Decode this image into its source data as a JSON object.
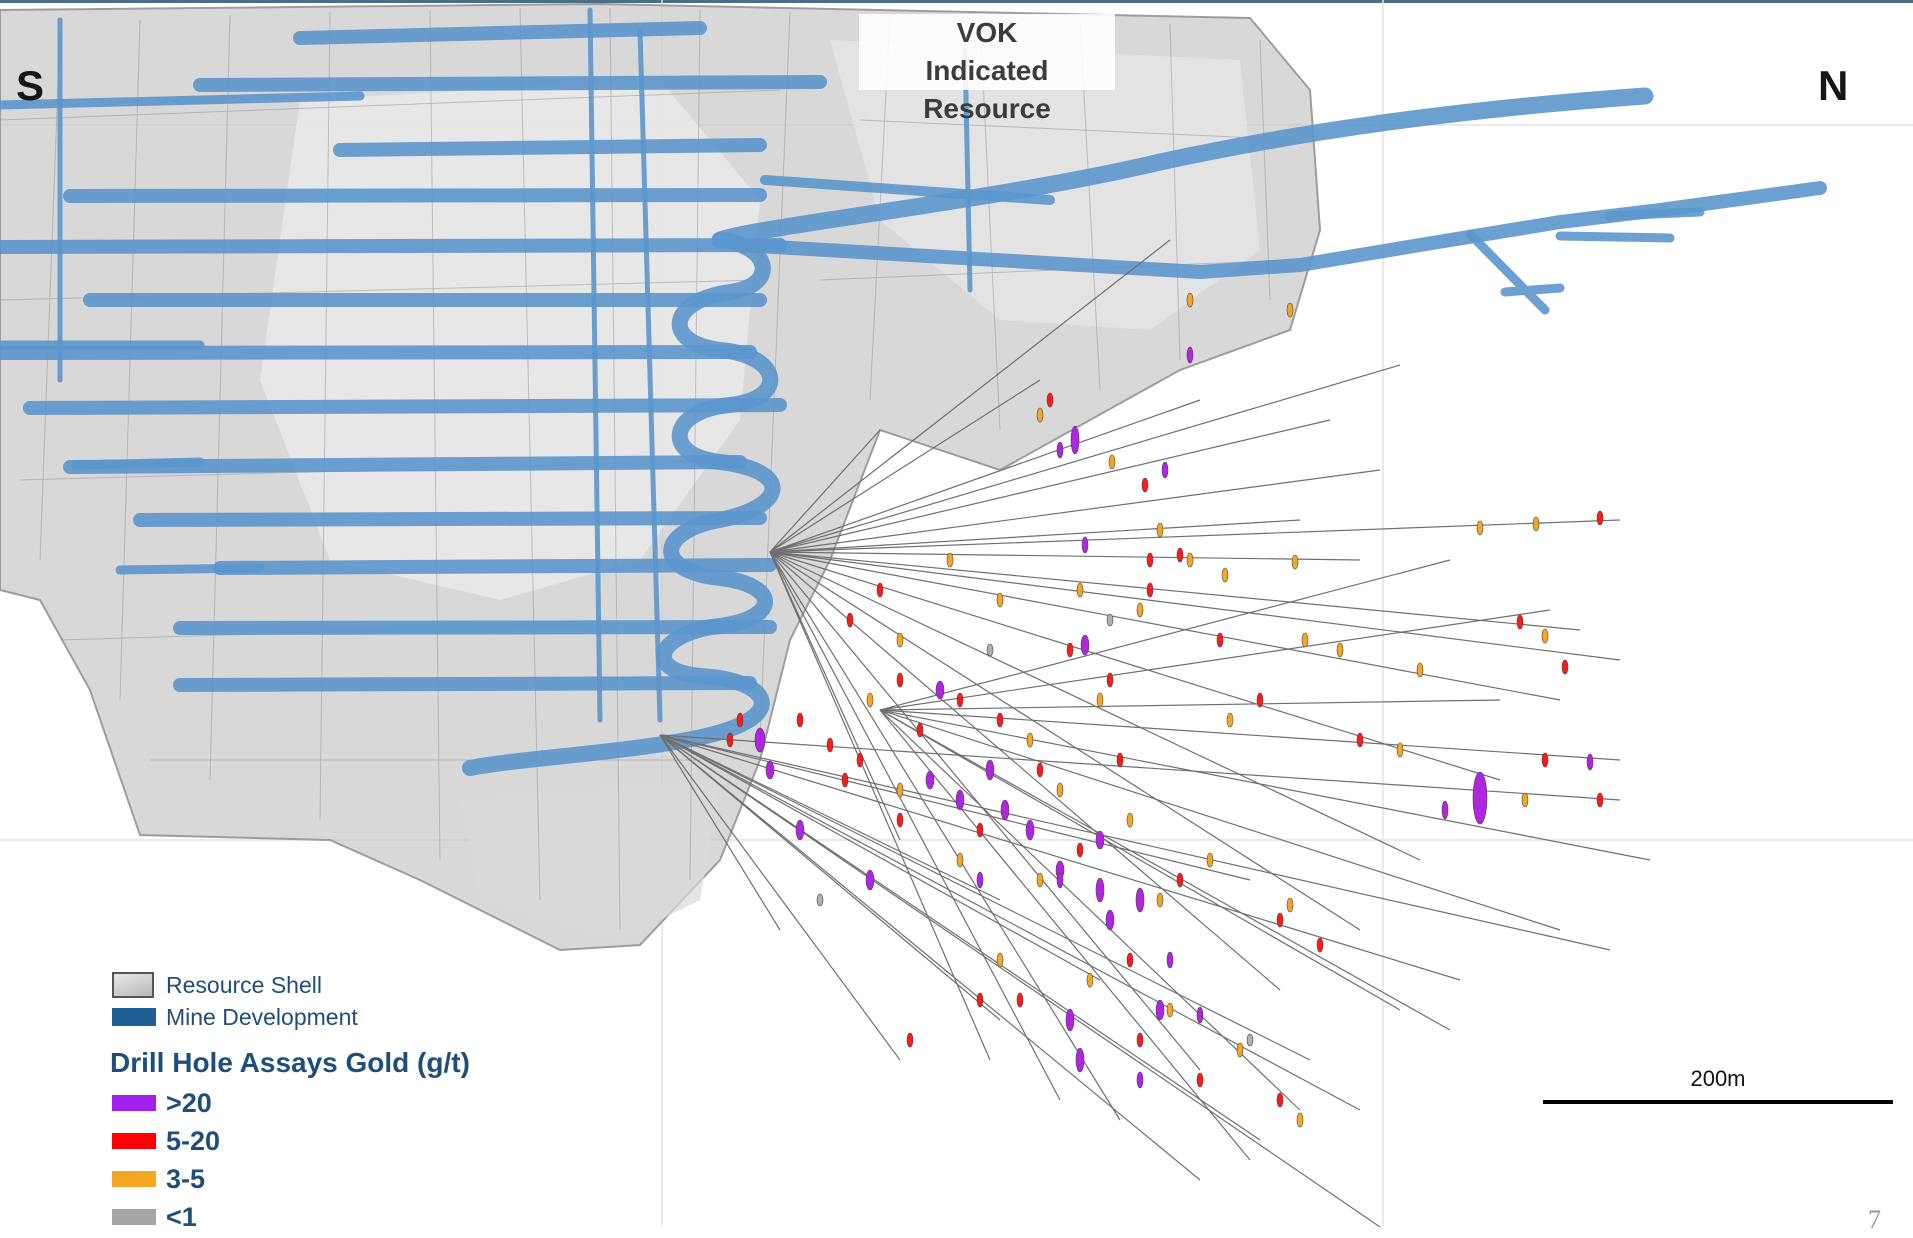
{
  "title": {
    "line1": "VOK",
    "line2": "Indicated Resource"
  },
  "directions": {
    "south": "S",
    "north": "N"
  },
  "legend": {
    "resource_shell": "Resource Shell",
    "mine_development": "Mine Development",
    "assay_title": "Drill Hole Assays Gold (g/t)",
    "assay_classes": [
      {
        "label": ">20",
        "color": "#a020f0"
      },
      {
        "label": "5-20",
        "color": "#ff0000"
      },
      {
        "label": "3-5",
        "color": "#f5a623"
      },
      {
        "label": "<1",
        "color": "#a6a6a6"
      }
    ]
  },
  "scale_bar": {
    "label": "200m"
  },
  "page_number": "7",
  "colors": {
    "resource_shell": "#c8c8c8",
    "mine_development": "#4f8fc7",
    "drill_trace": "#707070",
    "legend_text": "#1f4e79"
  }
}
